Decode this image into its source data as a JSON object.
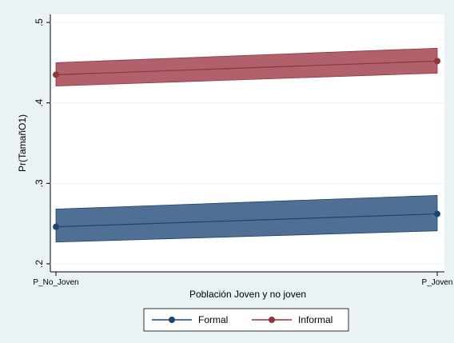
{
  "chart_data": {
    "type": "line",
    "x_label": "Población Joven y no joven",
    "y_label": "Pr(TamañO1)",
    "categories": [
      "P_No_Joven",
      "P_Joven"
    ],
    "series": [
      {
        "name": "Formal",
        "color": "#1a476f",
        "band_color": "#3d5f8a",
        "values": [
          0.246,
          0.262
        ],
        "lower": [
          0.227,
          0.241
        ],
        "upper": [
          0.268,
          0.285
        ]
      },
      {
        "name": "Informal",
        "color": "#90353b",
        "band_color": "#a8505c",
        "values": [
          0.435,
          0.452
        ],
        "lower": [
          0.421,
          0.437
        ],
        "upper": [
          0.45,
          0.468
        ]
      }
    ],
    "ylim": [
      0.19,
      0.51
    ],
    "yticks": [
      {
        "value": 0.2,
        "label": ".2"
      },
      {
        "value": 0.3,
        "label": ".3"
      },
      {
        "value": 0.4,
        "label": ".4"
      },
      {
        "value": 0.5,
        "label": ".5"
      }
    ],
    "grid": true
  }
}
